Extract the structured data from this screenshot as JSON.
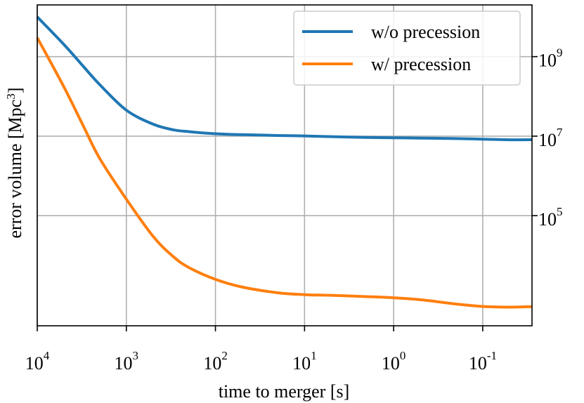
{
  "chart_data": {
    "type": "line",
    "xlabel": "time to merger [s]",
    "ylabel": {
      "text": "error volume [Mpc",
      "sup": "3",
      "tail": "]"
    },
    "x_scale": "log",
    "x_inverted": true,
    "xlim": [
      10000,
      0.028
    ],
    "x_ticks": [
      {
        "value": 10000,
        "base": "10",
        "exp": "4"
      },
      {
        "value": 1000,
        "base": "10",
        "exp": "3"
      },
      {
        "value": 100,
        "base": "10",
        "exp": "2"
      },
      {
        "value": 10,
        "base": "10",
        "exp": "1"
      },
      {
        "value": 1,
        "base": "10",
        "exp": "0"
      },
      {
        "value": 0.1,
        "base": "10",
        "exp": "-1"
      }
    ],
    "y_scale": "log",
    "ylim": [
      170,
      20000000000
    ],
    "y_gridlines": [
      100000,
      10000000,
      1000000000
    ],
    "y_ticks": [
      {
        "value": 100000,
        "base": "10",
        "exp": "5"
      },
      {
        "value": 10000000,
        "base": "10",
        "exp": "7"
      },
      {
        "value": 1000000000,
        "base": "10",
        "exp": "9"
      }
    ],
    "y_tick_side": "right",
    "grid": true,
    "legend_position": "top-right",
    "series": [
      {
        "name": "w/o precession",
        "color": "#1f77b4",
        "x": [
          10000,
          5000,
          3000,
          2000,
          1000,
          500,
          300,
          200,
          100,
          50,
          20,
          10,
          5,
          2,
          1,
          0.5,
          0.2,
          0.1,
          0.05,
          0.028
        ],
        "y": [
          10000000000,
          2000000000,
          550000000,
          200000000,
          45000000,
          20000000,
          14500000,
          13000000,
          11500000,
          10900000,
          10400000,
          10100000,
          9700000,
          9300000,
          9100000,
          8900000,
          8700000,
          8400000,
          8100000,
          8150000
        ]
      },
      {
        "name": "w/ precession",
        "color": "#ff7f0e",
        "x": [
          10000,
          5000,
          3000,
          2000,
          1000,
          500,
          300,
          200,
          100,
          50,
          20,
          10,
          5,
          2,
          1,
          0.5,
          0.2,
          0.1,
          0.05,
          0.028
        ],
        "y": [
          3000000000,
          170000000,
          17000000,
          2800000,
          260000,
          30000,
          9500,
          5000,
          2500,
          1600,
          1150,
          1030,
          990,
          920,
          860,
          770,
          600,
          520,
          500,
          515
        ]
      }
    ]
  }
}
